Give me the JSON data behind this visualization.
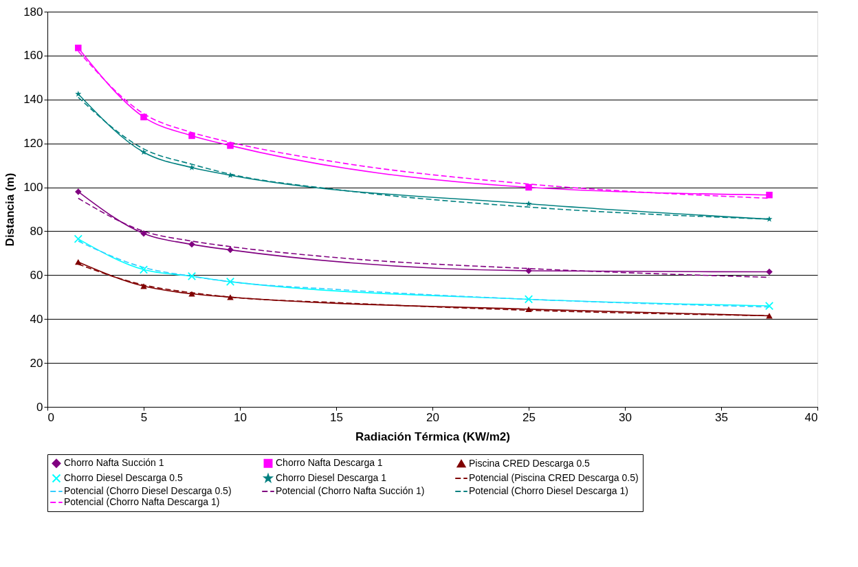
{
  "chart_data": {
    "type": "line",
    "xlabel": "Radiación Térmica (KW/m2)",
    "ylabel": "Distancia (m)",
    "xlim": [
      0,
      40
    ],
    "xticks": [
      0,
      5,
      10,
      15,
      20,
      25,
      30,
      35,
      40
    ],
    "ylim": [
      0,
      180
    ],
    "yticks": [
      0,
      20,
      40,
      60,
      80,
      100,
      120,
      140,
      160,
      180
    ],
    "grid": "y",
    "legend": "bottom",
    "series": [
      {
        "name": "Chorro Nafta Succión 1",
        "color": "#800080",
        "marker": "diamond",
        "line_style": "solid",
        "x": [
          1.6,
          5,
          7.5,
          9.5,
          25,
          37.5
        ],
        "values": [
          98,
          79,
          74,
          71.5,
          62,
          61.5
        ]
      },
      {
        "name": "Chorro Nafta Descarga 1",
        "color": "#ff00ff",
        "marker": "square",
        "line_style": "solid",
        "x": [
          1.6,
          5,
          7.5,
          9.5,
          25,
          37.5
        ],
        "values": [
          163.5,
          132,
          123.5,
          119,
          100,
          96.5
        ]
      },
      {
        "name": "Piscina CRED Descarga 0.5",
        "color": "#800000",
        "marker": "triangle",
        "line_style": "solid",
        "x": [
          1.6,
          5,
          7.5,
          9.5,
          25,
          37.5
        ],
        "values": [
          66,
          55,
          51.5,
          50,
          44.5,
          41.5
        ]
      },
      {
        "name": "Chorro Diesel Descarga 0.5",
        "color": "#00ffff",
        "marker": "cross",
        "line_style": "solid",
        "x": [
          1.6,
          5,
          7.5,
          9.5,
          25,
          37.5
        ],
        "values": [
          76.5,
          62.5,
          59.5,
          57,
          49,
          46
        ]
      },
      {
        "name": "Chorro Diesel Descarga 1",
        "color": "#008080",
        "marker": "star",
        "line_style": "solid",
        "x": [
          1.6,
          5,
          7.5,
          9.5,
          25,
          37.5
        ],
        "values": [
          142.5,
          116,
          109,
          105.5,
          92.5,
          85.5
        ]
      },
      {
        "name": "Potencial (Piscina CRED Descarga 0.5)",
        "color": "#800000",
        "marker": "none",
        "line_style": "dashed",
        "x": [
          1.6,
          5,
          7.5,
          9.5,
          15,
          25,
          37.5
        ],
        "values": [
          65,
          55.5,
          52,
          50,
          47.5,
          44,
          41.5
        ]
      },
      {
        "name": "Potencial (Chorro Diesel Descarga 0.5)",
        "color": "#33ccff",
        "marker": "none",
        "line_style": "dashed",
        "x": [
          1.6,
          5,
          7.5,
          9.5,
          15,
          25,
          37.5
        ],
        "values": [
          75.5,
          63.5,
          59.5,
          57,
          53.5,
          49,
          45.5
        ]
      },
      {
        "name": "Potencial (Chorro Nafta Succión 1)",
        "color": "#800080",
        "marker": "none",
        "line_style": "dashed",
        "x": [
          1.6,
          5,
          7.5,
          9.5,
          15,
          25,
          37.5
        ],
        "values": [
          95,
          80,
          75.5,
          73,
          68,
          63,
          59
        ]
      },
      {
        "name": "Potencial (Chorro Diesel Descarga 1)",
        "color": "#008080",
        "marker": "none",
        "line_style": "dashed",
        "x": [
          1.6,
          5,
          7.5,
          9.5,
          15,
          25,
          37.5
        ],
        "values": [
          141,
          117.5,
          110.5,
          106,
          99,
          91,
          85.5
        ]
      },
      {
        "name": "Potencial (Chorro Nafta Descarga 1)",
        "color": "#ff00ff",
        "marker": "none",
        "line_style": "dashed",
        "x": [
          1.6,
          5,
          7.5,
          9.5,
          15,
          25,
          37.5
        ],
        "values": [
          162,
          133.5,
          125,
          120.5,
          111.5,
          101.5,
          95
        ]
      }
    ]
  }
}
